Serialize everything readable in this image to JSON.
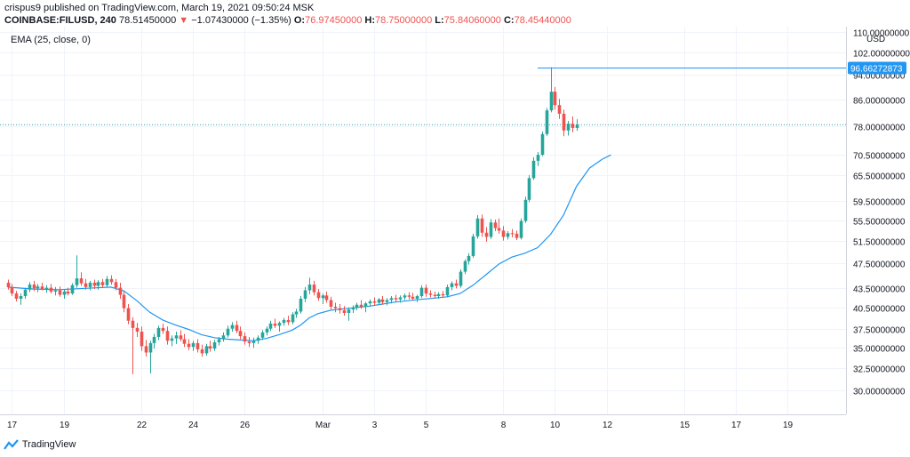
{
  "header": {
    "publisher": "crispus9 published on TradingView.com, March 19, 2021 09:50:24 MSK",
    "symbol": "COINBASE:FILUSD, 240",
    "last": "78.51450000",
    "change_arrow": "▼",
    "change": "−1.07430000 (−1.35%)",
    "open_label": "O:",
    "open": "76.97450000",
    "high_label": "H:",
    "high": "78.75000000",
    "low_label": "L:",
    "low": "75.84060000",
    "close_label": "C:",
    "close": "78.45440000"
  },
  "indicator_label": "EMA (25, close, 0)",
  "currency_label": "USD",
  "price_tag": "96.66272873",
  "footer": {
    "brand": "TradingView"
  },
  "colors": {
    "up": "#26a69a",
    "down": "#ef5350",
    "ema": "#2196f3",
    "grid": "#f0f3fa",
    "axis_text": "#131722",
    "tag_bg": "#2196f3",
    "last_price_line": "#26a69a"
  },
  "chart_data": {
    "type": "candlestick",
    "title": "COINBASE:FILUSD, 240",
    "ylabel": "USD",
    "ylim": [
      27.5,
      112.0
    ],
    "y_scale": "log",
    "grid": true,
    "yticks": [
      {
        "v": 110,
        "label": "110.00000000"
      },
      {
        "v": 102,
        "label": "102.00000000"
      },
      {
        "v": 94,
        "label": "94.00000000"
      },
      {
        "v": 86,
        "label": "86.00000000"
      },
      {
        "v": 78,
        "label": "78.00000000"
      },
      {
        "v": 70.5,
        "label": "70.50000000"
      },
      {
        "v": 65.5,
        "label": "65.50000000"
      },
      {
        "v": 59.5,
        "label": "59.50000000"
      },
      {
        "v": 55.5,
        "label": "55.50000000"
      },
      {
        "v": 51.5,
        "label": "51.50000000"
      },
      {
        "v": 47.5,
        "label": "47.50000000"
      },
      {
        "v": 43.5,
        "label": "43.50000000"
      },
      {
        "v": 40.5,
        "label": "40.50000000"
      },
      {
        "v": 37.5,
        "label": "37.50000000"
      },
      {
        "v": 35,
        "label": "35.00000000"
      },
      {
        "v": 32.5,
        "label": "32.50000000"
      },
      {
        "v": 30,
        "label": "30.00000000"
      }
    ],
    "xticks": [
      {
        "label": "17",
        "bar": 1
      },
      {
        "label": "19",
        "bar": 13
      },
      {
        "label": "22",
        "bar": 31
      },
      {
        "label": "24",
        "bar": 43
      },
      {
        "label": "26",
        "bar": 55
      },
      {
        "label": "Mar",
        "bar": 73
      },
      {
        "label": "3",
        "bar": 85
      },
      {
        "label": "5",
        "bar": 97
      },
      {
        "label": "8",
        "bar": 115
      },
      {
        "label": "10",
        "bar": 127
      },
      {
        "label": "12",
        "bar": 139
      },
      {
        "label": "15",
        "bar": 157
      },
      {
        "label": "17",
        "bar": 169
      },
      {
        "label": "19",
        "bar": 181
      }
    ],
    "candles": [
      [
        44.3,
        44.8,
        43.2,
        43.6
      ],
      [
        43.6,
        44.1,
        42.2,
        42.6
      ],
      [
        42.6,
        43.0,
        41.4,
        41.8
      ],
      [
        41.8,
        42.6,
        40.9,
        42.2
      ],
      [
        42.2,
        43.5,
        41.8,
        43.2
      ],
      [
        43.2,
        44.4,
        42.8,
        44.0
      ],
      [
        44.0,
        44.6,
        43.0,
        43.4
      ],
      [
        43.4,
        44.1,
        42.8,
        43.7
      ],
      [
        43.7,
        44.3,
        43.1,
        43.3
      ],
      [
        43.3,
        43.9,
        42.7,
        43.5
      ],
      [
        43.5,
        44.1,
        42.6,
        42.9
      ],
      [
        42.9,
        43.6,
        42.3,
        43.1
      ],
      [
        43.1,
        43.7,
        42.1,
        42.4
      ],
      [
        42.4,
        43.2,
        41.8,
        42.9
      ],
      [
        42.9,
        43.5,
        42.3,
        42.6
      ],
      [
        42.6,
        44.2,
        42.4,
        43.9
      ],
      [
        43.9,
        48.9,
        43.5,
        45.0
      ],
      [
        45.0,
        46.0,
        43.8,
        44.2
      ],
      [
        44.2,
        44.9,
        43.2,
        43.6
      ],
      [
        43.6,
        44.6,
        43.1,
        44.3
      ],
      [
        44.3,
        44.8,
        43.3,
        43.8
      ],
      [
        43.8,
        44.7,
        43.2,
        44.4
      ],
      [
        44.4,
        44.9,
        43.5,
        43.9
      ],
      [
        43.9,
        45.4,
        43.6,
        44.9
      ],
      [
        44.9,
        45.5,
        44.0,
        44.4
      ],
      [
        44.4,
        44.9,
        43.1,
        43.5
      ],
      [
        43.5,
        44.3,
        41.8,
        42.4
      ],
      [
        42.4,
        42.9,
        39.8,
        40.4
      ],
      [
        40.4,
        41.0,
        38.1,
        38.6
      ],
      [
        38.6,
        39.1,
        31.8,
        37.6
      ],
      [
        37.6,
        38.3,
        36.4,
        37.1
      ],
      [
        37.1,
        37.8,
        34.6,
        35.2
      ],
      [
        35.2,
        36.0,
        33.9,
        34.4
      ],
      [
        34.4,
        35.9,
        31.9,
        35.6
      ],
      [
        35.6,
        36.8,
        34.9,
        36.4
      ],
      [
        36.4,
        37.9,
        36.0,
        37.6
      ],
      [
        37.6,
        38.2,
        36.8,
        37.2
      ],
      [
        37.2,
        37.8,
        35.4,
        35.9
      ],
      [
        35.9,
        36.6,
        35.2,
        36.2
      ],
      [
        36.2,
        37.1,
        35.5,
        36.6
      ],
      [
        36.6,
        37.3,
        35.8,
        36.1
      ],
      [
        36.1,
        36.8,
        35.1,
        35.5
      ],
      [
        35.5,
        36.1,
        34.7,
        35.1
      ],
      [
        35.1,
        35.9,
        34.6,
        35.6
      ],
      [
        35.6,
        36.1,
        34.4,
        34.8
      ],
      [
        34.8,
        35.4,
        33.9,
        34.3
      ],
      [
        34.3,
        35.5,
        34.0,
        35.2
      ],
      [
        35.2,
        35.9,
        34.5,
        34.9
      ],
      [
        34.9,
        36.0,
        34.6,
        35.7
      ],
      [
        35.7,
        36.4,
        35.3,
        36.1
      ],
      [
        36.1,
        37.0,
        35.8,
        36.6
      ],
      [
        36.6,
        37.9,
        36.3,
        37.5
      ],
      [
        37.5,
        38.4,
        37.1,
        38.0
      ],
      [
        38.0,
        38.6,
        36.9,
        37.2
      ],
      [
        37.2,
        37.8,
        36.1,
        36.5
      ],
      [
        36.5,
        37.0,
        35.4,
        35.8
      ],
      [
        35.8,
        36.4,
        35.1,
        35.6
      ],
      [
        35.6,
        36.3,
        35.0,
        35.9
      ],
      [
        35.9,
        36.6,
        35.5,
        36.3
      ],
      [
        36.3,
        37.3,
        36.0,
        37.0
      ],
      [
        37.0,
        37.8,
        36.6,
        37.5
      ],
      [
        37.5,
        38.6,
        37.2,
        38.2
      ],
      [
        38.2,
        38.9,
        37.6,
        37.9
      ],
      [
        37.9,
        38.5,
        37.1,
        38.3
      ],
      [
        38.3,
        39.0,
        37.9,
        38.7
      ],
      [
        38.7,
        39.3,
        38.0,
        38.4
      ],
      [
        38.4,
        39.8,
        38.1,
        39.5
      ],
      [
        39.5,
        40.3,
        39.0,
        39.9
      ],
      [
        39.9,
        42.2,
        39.6,
        41.8
      ],
      [
        41.8,
        43.6,
        41.3,
        43.1
      ],
      [
        43.1,
        45.1,
        42.5,
        44.0
      ],
      [
        44.0,
        44.6,
        42.3,
        42.8
      ],
      [
        42.8,
        43.3,
        41.5,
        41.9
      ],
      [
        41.9,
        42.6,
        41.0,
        42.3
      ],
      [
        42.3,
        42.9,
        41.2,
        41.6
      ],
      [
        41.6,
        42.1,
        40.2,
        40.6
      ],
      [
        40.6,
        41.2,
        39.8,
        40.4
      ],
      [
        40.4,
        41.0,
        39.6,
        40.1
      ],
      [
        40.1,
        40.7,
        39.3,
        39.7
      ],
      [
        39.7,
        40.5,
        38.6,
        40.2
      ],
      [
        40.2,
        40.8,
        39.7,
        40.5
      ],
      [
        40.5,
        41.2,
        40.1,
        40.9
      ],
      [
        40.9,
        41.6,
        40.3,
        40.6
      ],
      [
        40.6,
        41.3,
        39.8,
        41.1
      ],
      [
        41.1,
        41.7,
        40.6,
        41.4
      ],
      [
        41.4,
        42.0,
        40.8,
        41.2
      ],
      [
        41.2,
        41.9,
        40.9,
        41.7
      ],
      [
        41.7,
        42.2,
        40.9,
        41.3
      ],
      [
        41.3,
        41.9,
        40.8,
        41.6
      ],
      [
        41.6,
        42.2,
        41.1,
        41.9
      ],
      [
        41.9,
        42.4,
        41.3,
        41.7
      ],
      [
        41.7,
        42.3,
        41.2,
        42.0
      ],
      [
        42.0,
        42.6,
        41.6,
        42.3
      ],
      [
        42.3,
        42.8,
        41.7,
        42.1
      ],
      [
        42.1,
        42.7,
        41.6,
        41.8
      ],
      [
        41.8,
        42.4,
        41.3,
        42.2
      ],
      [
        42.2,
        43.9,
        41.9,
        43.5
      ],
      [
        43.5,
        44.0,
        42.1,
        42.6
      ],
      [
        42.6,
        43.1,
        42.0,
        42.4
      ],
      [
        42.4,
        42.9,
        41.8,
        42.2
      ],
      [
        42.2,
        42.8,
        41.8,
        42.5
      ],
      [
        42.5,
        43.0,
        41.9,
        42.3
      ],
      [
        42.3,
        44.0,
        42.0,
        43.6
      ],
      [
        43.6,
        44.5,
        43.1,
        44.2
      ],
      [
        44.2,
        44.8,
        43.4,
        43.8
      ],
      [
        43.8,
        46.5,
        43.5,
        46.1
      ],
      [
        46.1,
        48.2,
        45.7,
        47.9
      ],
      [
        47.9,
        49.3,
        47.3,
        48.8
      ],
      [
        48.8,
        52.9,
        48.5,
        52.4
      ],
      [
        52.4,
        56.6,
        52.0,
        55.9
      ],
      [
        55.9,
        56.7,
        52.3,
        53.1
      ],
      [
        53.1,
        54.2,
        51.4,
        52.3
      ],
      [
        52.3,
        55.8,
        51.9,
        55.1
      ],
      [
        55.1,
        55.7,
        53.4,
        54.0
      ],
      [
        54.0,
        55.9,
        52.9,
        53.5
      ],
      [
        53.5,
        54.4,
        51.6,
        52.3
      ],
      [
        52.3,
        53.4,
        51.8,
        53.0
      ],
      [
        53.0,
        53.8,
        52.2,
        52.9
      ],
      [
        52.9,
        53.5,
        51.7,
        52.1
      ],
      [
        52.1,
        55.9,
        51.8,
        55.4
      ],
      [
        55.4,
        60.5,
        55.0,
        59.8
      ],
      [
        59.8,
        65.4,
        59.3,
        64.7
      ],
      [
        64.7,
        69.8,
        64.3,
        68.9
      ],
      [
        68.9,
        71.1,
        67.6,
        70.4
      ],
      [
        70.4,
        76.6,
        70.1,
        75.9
      ],
      [
        75.9,
        83.4,
        75.4,
        82.7
      ],
      [
        82.7,
        96.7,
        82.1,
        88.5
      ],
      [
        88.5,
        90.0,
        82.9,
        84.3
      ],
      [
        84.3,
        86.2,
        80.2,
        81.7
      ],
      [
        81.7,
        82.9,
        75.3,
        76.9
      ],
      [
        76.9,
        79.6,
        75.5,
        78.8
      ],
      [
        78.8,
        80.9,
        76.4,
        77.6
      ],
      [
        77.6,
        80.1,
        76.8,
        78.5
      ]
    ],
    "ema_label": "EMA (25, close, 0)",
    "ema": [
      [
        0,
        43.6
      ],
      [
        6,
        43.3
      ],
      [
        12,
        43.2
      ],
      [
        18,
        43.4
      ],
      [
        24,
        43.6
      ],
      [
        27,
        43.0
      ],
      [
        30,
        41.5
      ],
      [
        33,
        39.8
      ],
      [
        36,
        38.7
      ],
      [
        39,
        38.0
      ],
      [
        42,
        37.4
      ],
      [
        45,
        36.7
      ],
      [
        48,
        36.3
      ],
      [
        51,
        36.1
      ],
      [
        54,
        36.0
      ],
      [
        57,
        35.9
      ],
      [
        60,
        36.2
      ],
      [
        63,
        36.7
      ],
      [
        66,
        37.3
      ],
      [
        68,
        38.0
      ],
      [
        70,
        39.0
      ],
      [
        72,
        39.6
      ],
      [
        75,
        40.1
      ],
      [
        78,
        40.3
      ],
      [
        81,
        40.5
      ],
      [
        84,
        40.7
      ],
      [
        87,
        41.0
      ],
      [
        90,
        41.3
      ],
      [
        93,
        41.5
      ],
      [
        96,
        41.7
      ],
      [
        99,
        41.9
      ],
      [
        102,
        42.1
      ],
      [
        105,
        42.6
      ],
      [
        108,
        43.9
      ],
      [
        111,
        45.6
      ],
      [
        114,
        47.4
      ],
      [
        117,
        48.6
      ],
      [
        120,
        49.3
      ],
      [
        123,
        50.3
      ],
      [
        126,
        52.8
      ],
      [
        129,
        56.6
      ],
      [
        132,
        62.8
      ],
      [
        135,
        67.1
      ],
      [
        138,
        69.3
      ],
      [
        140,
        70.4
      ]
    ],
    "last_price": 78.51,
    "highlight_price": 96.66
  }
}
